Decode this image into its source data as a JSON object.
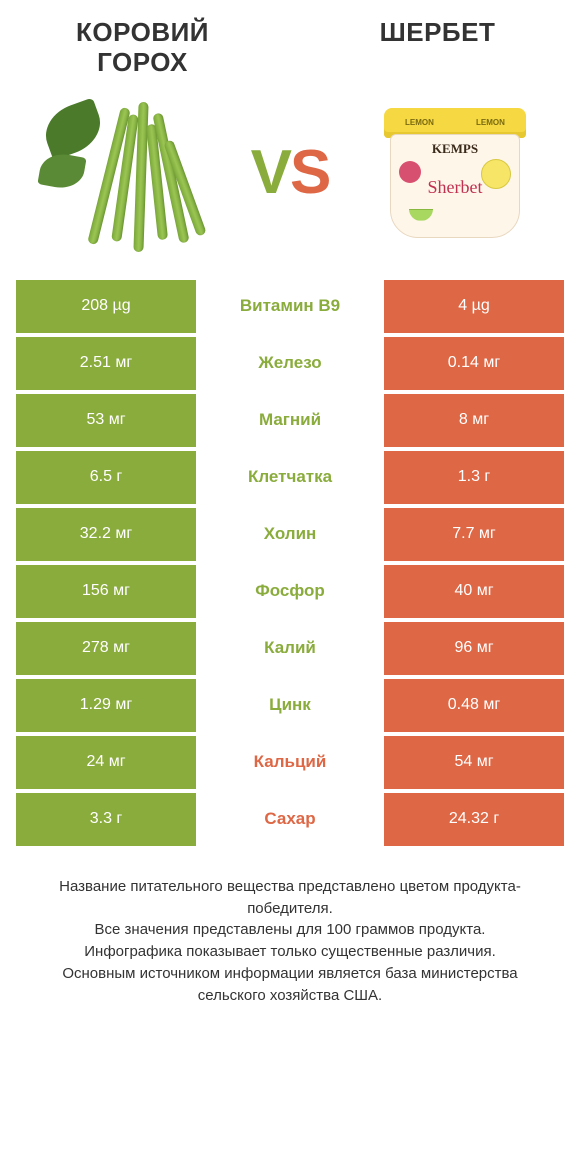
{
  "colors": {
    "green": "#8aac3c",
    "orange": "#de6745",
    "text": "#333333",
    "white": "#ffffff"
  },
  "left_product": {
    "title": "КОРОВИЙ ГОРОХ"
  },
  "right_product": {
    "title": "ШЕРБЕТ"
  },
  "vs": {
    "v": "V",
    "s": "S"
  },
  "tub_labels": {
    "lemon": "LEMON",
    "brand": "KEMPS",
    "word": "Sherbet"
  },
  "rows": [
    {
      "nutrient": "Витамин B9",
      "left": "208 µg",
      "right": "4 µg",
      "winner": "left"
    },
    {
      "nutrient": "Железо",
      "left": "2.51 мг",
      "right": "0.14 мг",
      "winner": "left"
    },
    {
      "nutrient": "Магний",
      "left": "53 мг",
      "right": "8 мг",
      "winner": "left"
    },
    {
      "nutrient": "Клетчатка",
      "left": "6.5 г",
      "right": "1.3 г",
      "winner": "left"
    },
    {
      "nutrient": "Холин",
      "left": "32.2 мг",
      "right": "7.7 мг",
      "winner": "left"
    },
    {
      "nutrient": "Фосфор",
      "left": "156 мг",
      "right": "40 мг",
      "winner": "left"
    },
    {
      "nutrient": "Калий",
      "left": "278 мг",
      "right": "96 мг",
      "winner": "left"
    },
    {
      "nutrient": "Цинк",
      "left": "1.29 мг",
      "right": "0.48 мг",
      "winner": "left"
    },
    {
      "nutrient": "Кальций",
      "left": "24 мг",
      "right": "54 мг",
      "winner": "right"
    },
    {
      "nutrient": "Сахар",
      "left": "3.3 г",
      "right": "24.32 г",
      "winner": "right"
    }
  ],
  "footer": {
    "l1": "Название питательного вещества представлено цветом продукта-победителя.",
    "l2": "Все значения представлены для 100 граммов продукта.",
    "l3": "Инфографика показывает только существенные различия.",
    "l4": "Основным источником информации является база министерства сельского хозяйства США."
  }
}
